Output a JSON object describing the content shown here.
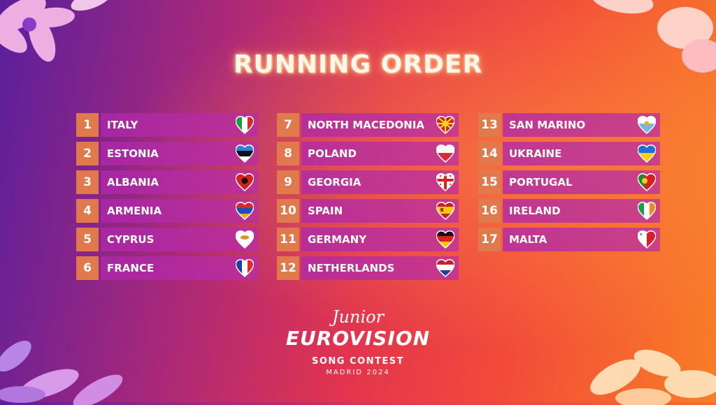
{
  "title": "RUNNING ORDER",
  "columns": [
    [
      {
        "num": "1",
        "name": "ITALY",
        "flag": "italy-flag-icon"
      },
      {
        "num": "2",
        "name": "ESTONIA",
        "flag": "estonia-flag-icon"
      },
      {
        "num": "3",
        "name": "ALBANIA",
        "flag": "albania-flag-icon"
      },
      {
        "num": "4",
        "name": "ARMENIA",
        "flag": "armenia-flag-icon"
      },
      {
        "num": "5",
        "name": "CYPRUS",
        "flag": "cyprus-flag-icon"
      },
      {
        "num": "6",
        "name": "FRANCE",
        "flag": "france-flag-icon"
      }
    ],
    [
      {
        "num": "7",
        "name": "NORTH MACEDONIA",
        "flag": "north-macedonia-flag-icon"
      },
      {
        "num": "8",
        "name": "POLAND",
        "flag": "poland-flag-icon"
      },
      {
        "num": "9",
        "name": "GEORGIA",
        "flag": "georgia-flag-icon"
      },
      {
        "num": "10",
        "name": "SPAIN",
        "flag": "spain-flag-icon"
      },
      {
        "num": "11",
        "name": "GERMANY",
        "flag": "germany-flag-icon"
      },
      {
        "num": "12",
        "name": "NETHERLANDS",
        "flag": "netherlands-flag-icon"
      }
    ],
    [
      {
        "num": "13",
        "name": "SAN MARINO",
        "flag": "san-marino-flag-icon"
      },
      {
        "num": "14",
        "name": "UKRAINE",
        "flag": "ukraine-flag-icon"
      },
      {
        "num": "15",
        "name": "PORTUGAL",
        "flag": "portugal-flag-icon"
      },
      {
        "num": "16",
        "name": "IRELAND",
        "flag": "ireland-flag-icon"
      },
      {
        "num": "17",
        "name": "MALTA",
        "flag": "malta-flag-icon"
      }
    ]
  ],
  "logo": {
    "line1": "Junior",
    "line2": "EUROVISION",
    "line3": "SONG CONTEST",
    "line4": "MADRID 2024"
  }
}
